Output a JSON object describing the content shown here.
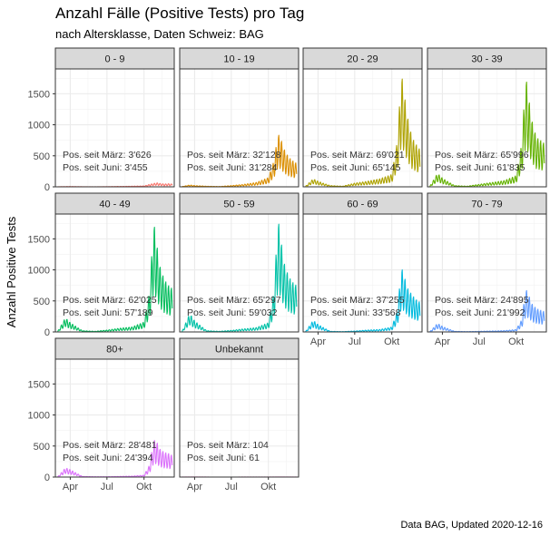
{
  "title": "Anzahl Fälle (Positive Tests) pro Tag",
  "subtitle": "nach Altersklasse, Daten Schweiz: BAG",
  "caption": "Data BAG, Updated 2020-12-16",
  "chart_data": {
    "type": "line",
    "ylabel": "Anzahl Positive Tests",
    "xlabel": "",
    "ylim": [
      0,
      1900
    ],
    "xlim": [
      "2020-02-24",
      "2020-12-15"
    ],
    "yticks": [
      0,
      500,
      1000,
      1500
    ],
    "xticks": [
      {
        "date": "2020-04-01",
        "label": "Apr"
      },
      {
        "date": "2020-07-01",
        "label": "Jul"
      },
      {
        "date": "2020-10-01",
        "label": "Okt"
      }
    ],
    "grid": true,
    "panels": [
      {
        "name": "0 - 9",
        "color": "#F8766D",
        "since_march": "Pos. seit März: 3'626",
        "since_june": "Pos. seit Juni: 3'455",
        "x": [
          "2020-03-01",
          "2020-04-01",
          "2020-05-01",
          "2020-06-01",
          "2020-07-01",
          "2020-08-01",
          "2020-09-01",
          "2020-10-01",
          "2020-10-15",
          "2020-11-01",
          "2020-11-10",
          "2020-11-20",
          "2020-12-01",
          "2020-12-10"
        ],
        "y": [
          2,
          5,
          2,
          1,
          3,
          6,
          10,
          15,
          40,
          65,
          55,
          45,
          50,
          45
        ]
      },
      {
        "name": "10 - 19",
        "color": "#DB8E00",
        "since_march": "Pos. seit März: 32'128",
        "since_june": "Pos. seit Juni: 31'284",
        "x": [
          "2020-03-01",
          "2020-03-20",
          "2020-04-01",
          "2020-05-01",
          "2020-06-01",
          "2020-07-01",
          "2020-08-01",
          "2020-09-01",
          "2020-10-01",
          "2020-10-15",
          "2020-10-25",
          "2020-11-01",
          "2020-11-10",
          "2020-11-20",
          "2020-12-01",
          "2020-12-10"
        ],
        "y": [
          5,
          30,
          20,
          10,
          5,
          20,
          40,
          70,
          150,
          420,
          860,
          780,
          600,
          480,
          420,
          380
        ]
      },
      {
        "name": "20 - 29",
        "color": "#AEA200",
        "since_march": "Pos. seit März: 69'021",
        "since_june": "Pos. seit Juni: 65'145",
        "x": [
          "2020-03-01",
          "2020-03-20",
          "2020-04-01",
          "2020-05-01",
          "2020-06-01",
          "2020-07-01",
          "2020-08-01",
          "2020-09-01",
          "2020-10-01",
          "2020-10-15",
          "2020-10-25",
          "2020-11-01",
          "2020-11-10",
          "2020-11-20",
          "2020-12-01",
          "2020-12-10"
        ],
        "y": [
          10,
          130,
          90,
          20,
          10,
          60,
          90,
          130,
          200,
          750,
          1850,
          1500,
          1100,
          800,
          680,
          600
        ]
      },
      {
        "name": "30 - 39",
        "color": "#64B200",
        "since_march": "Pos. seit März: 65'996",
        "since_june": "Pos. seit Juni: 61'835",
        "x": [
          "2020-03-01",
          "2020-03-20",
          "2020-04-01",
          "2020-05-01",
          "2020-06-01",
          "2020-07-01",
          "2020-08-01",
          "2020-09-01",
          "2020-10-01",
          "2020-10-15",
          "2020-10-25",
          "2020-11-01",
          "2020-11-10",
          "2020-11-20",
          "2020-12-01",
          "2020-12-10"
        ],
        "y": [
          10,
          220,
          140,
          20,
          10,
          40,
          70,
          100,
          180,
          700,
          1800,
          1450,
          1050,
          800,
          750,
          700
        ]
      },
      {
        "name": "40 - 49",
        "color": "#00BD5C",
        "since_march": "Pos. seit März: 62'025",
        "since_june": "Pos. seit Juni: 57'189",
        "x": [
          "2020-03-01",
          "2020-03-20",
          "2020-04-01",
          "2020-05-01",
          "2020-06-01",
          "2020-07-01",
          "2020-08-01",
          "2020-09-01",
          "2020-10-01",
          "2020-10-15",
          "2020-10-25",
          "2020-11-01",
          "2020-11-10",
          "2020-11-20",
          "2020-12-01",
          "2020-12-10"
        ],
        "y": [
          10,
          230,
          150,
          20,
          10,
          30,
          60,
          80,
          160,
          650,
          1800,
          1450,
          1050,
          850,
          750,
          700
        ]
      },
      {
        "name": "50 - 59",
        "color": "#00C1A7",
        "since_march": "Pos. seit März: 65'297",
        "since_june": "Pos. seit Juni: 59'032",
        "x": [
          "2020-03-01",
          "2020-03-20",
          "2020-04-01",
          "2020-05-01",
          "2020-06-01",
          "2020-07-01",
          "2020-08-01",
          "2020-09-01",
          "2020-10-01",
          "2020-10-15",
          "2020-10-25",
          "2020-11-01",
          "2020-11-10",
          "2020-11-20",
          "2020-12-01",
          "2020-12-10"
        ],
        "y": [
          10,
          300,
          180,
          20,
          10,
          25,
          50,
          70,
          150,
          650,
          1850,
          1500,
          1100,
          900,
          800,
          750
        ]
      },
      {
        "name": "60 - 69",
        "color": "#00BADE",
        "since_march": "Pos. seit März: 37'255",
        "since_june": "Pos. seit Juni: 33'568",
        "x": [
          "2020-03-01",
          "2020-03-20",
          "2020-04-01",
          "2020-05-01",
          "2020-06-01",
          "2020-07-01",
          "2020-08-01",
          "2020-09-01",
          "2020-10-01",
          "2020-10-15",
          "2020-10-25",
          "2020-11-01",
          "2020-11-10",
          "2020-11-20",
          "2020-12-01",
          "2020-12-10"
        ],
        "y": [
          5,
          190,
          120,
          10,
          5,
          15,
          30,
          40,
          80,
          350,
          1050,
          900,
          700,
          600,
          520,
          480
        ]
      },
      {
        "name": "70 - 79",
        "color": "#619CFF",
        "since_march": "Pos. seit März: 24'895",
        "since_june": "Pos. seit Juni: 21'992",
        "x": [
          "2020-03-01",
          "2020-03-20",
          "2020-04-01",
          "2020-05-01",
          "2020-06-01",
          "2020-07-01",
          "2020-08-01",
          "2020-09-01",
          "2020-10-01",
          "2020-10-15",
          "2020-10-25",
          "2020-11-01",
          "2020-11-10",
          "2020-11-20",
          "2020-12-01",
          "2020-12-10"
        ],
        "y": [
          5,
          140,
          90,
          10,
          5,
          10,
          15,
          20,
          40,
          200,
          700,
          600,
          450,
          380,
          350,
          330
        ]
      },
      {
        "name": "80+",
        "color": "#DB72FB",
        "since_march": "Pos. seit März: 28'481",
        "since_june": "Pos. seit Juni: 24'394",
        "x": [
          "2020-03-01",
          "2020-03-20",
          "2020-04-01",
          "2020-05-01",
          "2020-06-01",
          "2020-07-01",
          "2020-08-01",
          "2020-09-01",
          "2020-10-01",
          "2020-10-15",
          "2020-10-25",
          "2020-11-01",
          "2020-11-10",
          "2020-11-20",
          "2020-12-01",
          "2020-12-10"
        ],
        "y": [
          5,
          150,
          120,
          10,
          5,
          5,
          10,
          15,
          30,
          200,
          600,
          580,
          450,
          400,
          380,
          350
        ]
      },
      {
        "name": "Unbekannt",
        "color": "#FF61C3",
        "since_march": "Pos. seit März: 104",
        "since_june": "Pos. seit Juni: 61",
        "x": [
          "2020-03-01",
          "2020-04-01",
          "2020-06-01",
          "2020-08-01",
          "2020-10-01",
          "2020-11-01",
          "2020-12-10"
        ],
        "y": [
          1,
          2,
          0,
          1,
          1,
          2,
          1
        ]
      }
    ]
  }
}
